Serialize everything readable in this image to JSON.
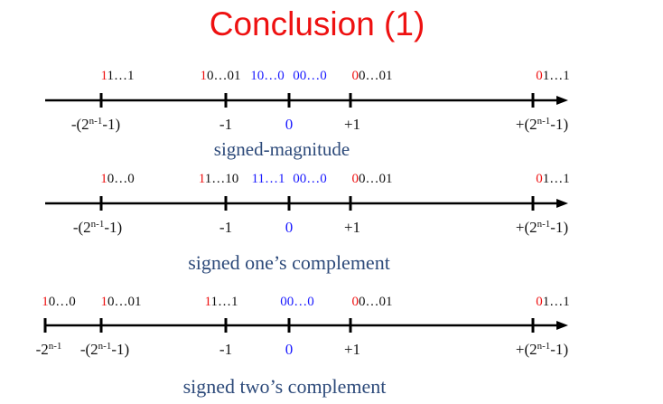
{
  "title": "Conclusion (1)",
  "colors": {
    "title": "#ee1111",
    "sign_bit": "#ee1111",
    "zero": "#1a1aff",
    "text": "#111111",
    "caption": "#2d4a7a"
  },
  "lines": [
    {
      "caption": "signed-magnitude",
      "codes": [
        [
          {
            "t": "1",
            "c": "red"
          },
          {
            "t": "1…1",
            "c": "black"
          }
        ],
        [
          {
            "t": "1",
            "c": "red"
          },
          {
            "t": "0…01",
            "c": "black"
          }
        ],
        [
          {
            "t": "10…0",
            "c": "blue"
          }
        ],
        [
          {
            "t": "00…0",
            "c": "blue"
          }
        ],
        [
          {
            "t": "0",
            "c": "red"
          },
          {
            "t": "0…01",
            "c": "black"
          }
        ],
        [
          {
            "t": "0",
            "c": "red"
          },
          {
            "t": "1…1",
            "c": "black"
          }
        ]
      ],
      "values": [
        [
          {
            "t": "-(2"
          },
          {
            "t": "n-1",
            "sup": true
          },
          {
            "t": "-1)"
          }
        ],
        [
          {
            "t": "-1"
          }
        ],
        [
          {
            "t": "0",
            "c": "blue"
          }
        ],
        [
          {
            "t": "+1"
          }
        ],
        [
          {
            "t": "+(2"
          },
          {
            "t": "n-1",
            "sup": true
          },
          {
            "t": "-1)"
          }
        ]
      ]
    },
    {
      "caption": "signed one’s complement",
      "codes": [
        [
          {
            "t": "1",
            "c": "red"
          },
          {
            "t": "0…0",
            "c": "black"
          }
        ],
        [
          {
            "t": "1",
            "c": "red"
          },
          {
            "t": "1…10",
            "c": "black"
          }
        ],
        [
          {
            "t": "11…1",
            "c": "blue"
          }
        ],
        [
          {
            "t": "00…0",
            "c": "blue"
          }
        ],
        [
          {
            "t": "0",
            "c": "red"
          },
          {
            "t": "0…01",
            "c": "black"
          }
        ],
        [
          {
            "t": "0",
            "c": "red"
          },
          {
            "t": "1…1",
            "c": "black"
          }
        ]
      ],
      "values": [
        [
          {
            "t": "-(2"
          },
          {
            "t": "n-1",
            "sup": true
          },
          {
            "t": "-1)"
          }
        ],
        [
          {
            "t": "-1"
          }
        ],
        [
          {
            "t": "0",
            "c": "blue"
          }
        ],
        [
          {
            "t": "+1"
          }
        ],
        [
          {
            "t": "+(2"
          },
          {
            "t": "n-1",
            "sup": true
          },
          {
            "t": "-1)"
          }
        ]
      ]
    },
    {
      "caption": "signed two’s complement",
      "codes": [
        [
          {
            "t": "1",
            "c": "red"
          },
          {
            "t": "0…0",
            "c": "black"
          }
        ],
        [
          {
            "t": "1",
            "c": "red"
          },
          {
            "t": "0…01",
            "c": "black"
          }
        ],
        [
          {
            "t": "1",
            "c": "red"
          },
          {
            "t": "1…1",
            "c": "black"
          }
        ],
        [
          {
            "t": "00…0",
            "c": "blue"
          }
        ],
        [
          {
            "t": "0",
            "c": "red"
          },
          {
            "t": "0…01",
            "c": "black"
          }
        ],
        [
          {
            "t": "0",
            "c": "red"
          },
          {
            "t": "1…1",
            "c": "black"
          }
        ]
      ],
      "values": [
        [
          {
            "t": "-2"
          },
          {
            "t": "n-1",
            "sup": true
          }
        ],
        [
          {
            "t": "-(2"
          },
          {
            "t": "n-1",
            "sup": true
          },
          {
            "t": "-1)"
          }
        ],
        [
          {
            "t": "-1"
          }
        ],
        [
          {
            "t": "0",
            "c": "blue"
          }
        ],
        [
          {
            "t": "+1"
          }
        ],
        [
          {
            "t": "+(2"
          },
          {
            "t": "n-1",
            "sup": true
          },
          {
            "t": "-1)"
          }
        ]
      ]
    }
  ]
}
